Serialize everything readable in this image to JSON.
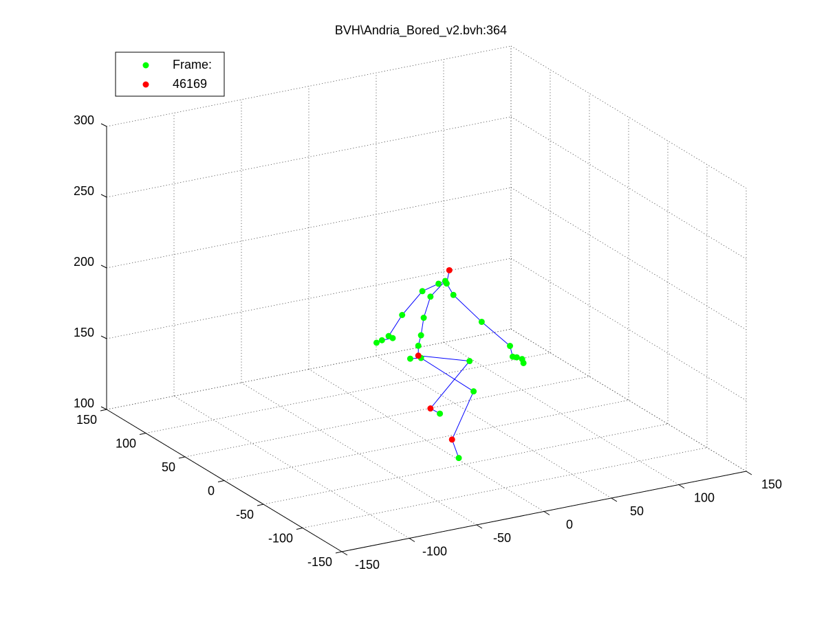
{
  "chart_data": {
    "type": "scatter3d",
    "title": "BVH\\Andria_Bored_v2.bvh:364",
    "series": [
      {
        "name": "Frame:",
        "color": "#00ff00",
        "x": [
          14,
          15,
          9,
          -3,
          -18,
          -28,
          -33,
          -37,
          -25,
          3,
          -2,
          -4,
          -6,
          20,
          41,
          62,
          64,
          67,
          71,
          72,
          -4,
          -12,
          32,
          35,
          10,
          24
        ],
        "y": [
          0,
          0,
          0,
          0,
          0,
          0,
          0,
          0,
          0,
          0,
          0,
          0,
          0,
          0,
          0,
          0,
          0,
          0,
          0,
          0,
          0,
          0,
          0,
          0,
          0,
          0
        ],
        "z": [
          210,
          208,
          209,
          206,
          192,
          179,
          177,
          176,
          177,
          201,
          187,
          175,
          168,
          199,
          176,
          155,
          147,
          146,
          144,
          141,
          159,
          160,
          150,
          128,
          117,
          83
        ]
      },
      {
        "name": "46169",
        "color": "#ff0000",
        "x": [
          17,
          -6,
          3,
          19
        ],
        "y": [
          0,
          0,
          0,
          0
        ],
        "z": [
          217,
          161,
          122,
          97
        ]
      }
    ],
    "line_color": "#0000ff",
    "xlim": [
      -150,
      150
    ],
    "ylim": [
      -150,
      150
    ],
    "zlim": [
      100,
      300
    ],
    "xticks": [
      -150,
      -100,
      -50,
      0,
      50,
      100,
      150
    ],
    "yticks": [
      -150,
      -100,
      -50,
      0,
      50,
      100,
      150
    ],
    "zticks": [
      100,
      150,
      200,
      250,
      300
    ],
    "grid": true,
    "legend": "northwest"
  }
}
